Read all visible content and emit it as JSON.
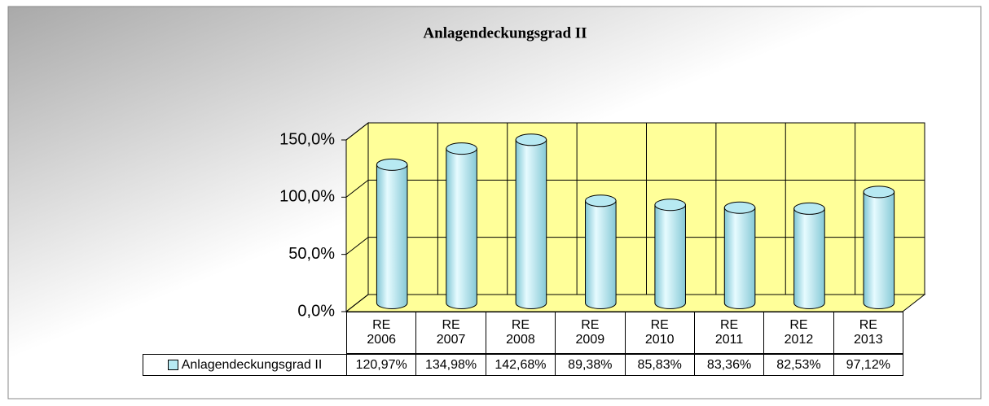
{
  "chart_data": {
    "type": "bar3d",
    "title": "Anlagendeckungsgrad II",
    "categories": [
      "RE 2006",
      "RE 2007",
      "RE 2008",
      "RE 2009",
      "RE 2010",
      "RE 2011",
      "RE 2012",
      "RE 2013"
    ],
    "series": [
      {
        "name": "Anlagendeckungsgrad II",
        "color": "#b7e9f2",
        "values": [
          120.97,
          134.98,
          142.68,
          89.38,
          85.83,
          83.36,
          82.53,
          97.12
        ],
        "value_labels": [
          "120,97%",
          "134,98%",
          "142,68%",
          "89,38%",
          "85,83%",
          "83,36%",
          "82,53%",
          "97,12%"
        ]
      }
    ],
    "ylim": [
      0,
      150
    ],
    "yticks": [
      {
        "value": 0,
        "label": "0,0%"
      },
      {
        "value": 50,
        "label": "50,0%"
      },
      {
        "value": 100,
        "label": "100,0%"
      },
      {
        "value": 150,
        "label": "150,0%"
      }
    ],
    "grid": true,
    "wall_color": "#ffff99"
  }
}
